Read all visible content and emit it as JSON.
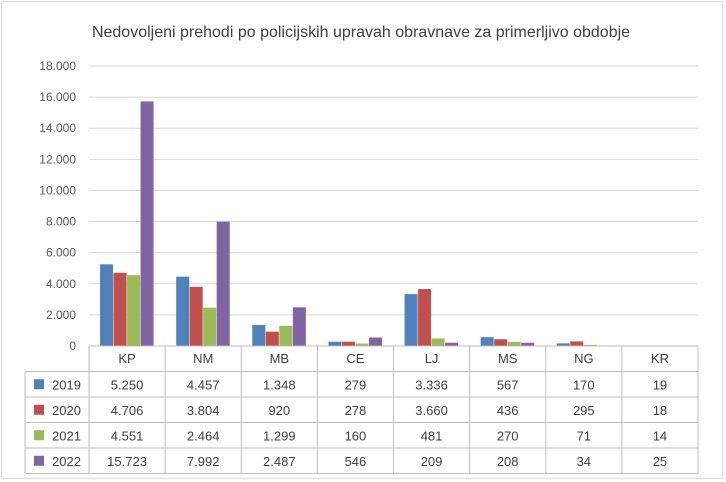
{
  "chart_data": {
    "type": "bar",
    "title": "Nedovoljeni prehodi po policijskih upravah obravnave za primerljivo obdobje",
    "categories": [
      "KP",
      "NM",
      "MB",
      "CE",
      "LJ",
      "MS",
      "NG",
      "KR"
    ],
    "ylim": [
      0,
      18000
    ],
    "yticks": [
      "0",
      "2.000",
      "4.000",
      "6.000",
      "8.000",
      "10.000",
      "12.000",
      "14.000",
      "16.000",
      "18.000"
    ],
    "grid": true,
    "legend": "data-table",
    "series": [
      {
        "name": "2019",
        "color": "#4f81bd",
        "values": [
          5250,
          4457,
          1348,
          279,
          3336,
          567,
          170,
          19
        ],
        "labels": [
          "5.250",
          "4.457",
          "1.348",
          "279",
          "3.336",
          "567",
          "170",
          "19"
        ]
      },
      {
        "name": "2020",
        "color": "#c0504d",
        "values": [
          4706,
          3804,
          920,
          278,
          3660,
          436,
          295,
          18
        ],
        "labels": [
          "4.706",
          "3.804",
          "920",
          "278",
          "3.660",
          "436",
          "295",
          "18"
        ]
      },
      {
        "name": "2021",
        "color": "#9bbb59",
        "values": [
          4551,
          2464,
          1299,
          160,
          481,
          270,
          71,
          14
        ],
        "labels": [
          "4.551",
          "2.464",
          "1.299",
          "160",
          "481",
          "270",
          "71",
          "14"
        ]
      },
      {
        "name": "2022",
        "color": "#8064a2",
        "values": [
          15723,
          7992,
          2487,
          546,
          209,
          208,
          34,
          25
        ],
        "labels": [
          "15.723",
          "7.992",
          "2.487",
          "546",
          "209",
          "208",
          "34",
          "25"
        ]
      }
    ]
  }
}
